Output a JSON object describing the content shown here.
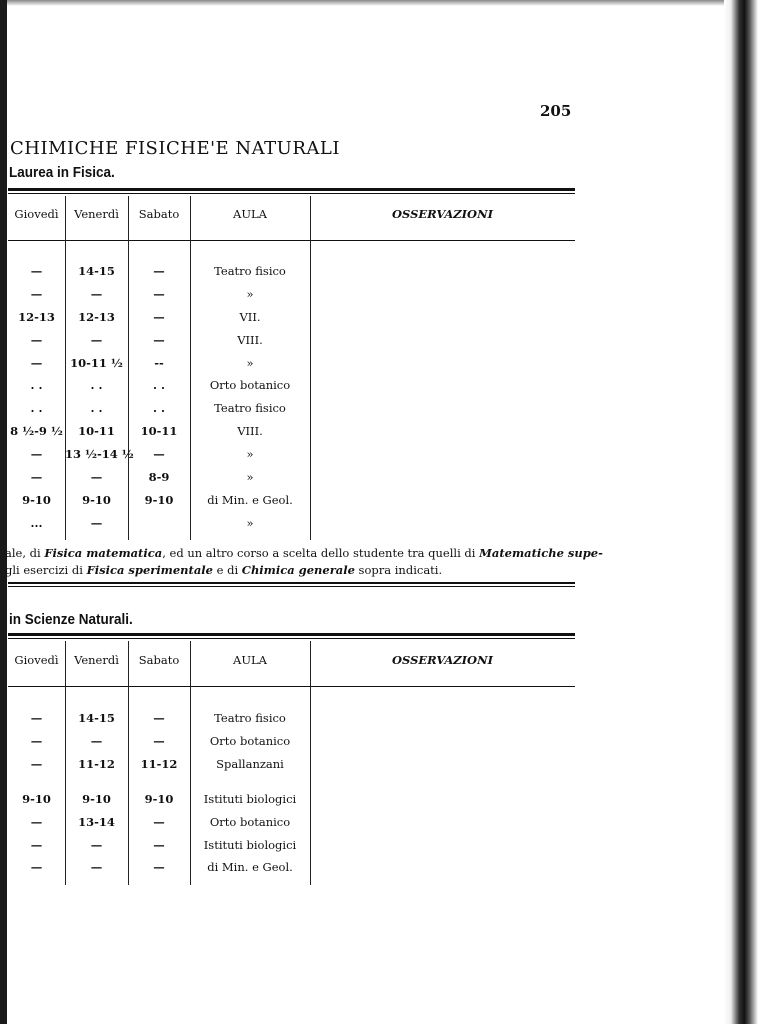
{
  "page_number": "205",
  "heading": "CHIMICHE FISICHE'E NATURALI",
  "section1": {
    "title": "Laurea in Fisica.",
    "headers": [
      "Giovedì",
      "Venerdì",
      "Sabato",
      "AULA",
      "OSSERVAZIONI"
    ],
    "rows": [
      [
        "—",
        "14-15",
        "—",
        "Teatro fisico"
      ],
      [
        "—",
        "—",
        "—",
        "»"
      ],
      [
        "12-13",
        "12-13",
        "—",
        "VII."
      ],
      [
        "—",
        "—",
        "—",
        "VIII."
      ],
      [
        "—",
        "10-11 ½",
        "--",
        "»"
      ],
      [
        ". .",
        ". .",
        ". .",
        "Orto botanico"
      ],
      [
        ". .",
        ". .",
        ". .",
        "Teatro fisico"
      ],
      [
        "8 ½-9 ½",
        "10-11",
        "10-11",
        "VIII."
      ],
      [
        "—",
        "13 ½-14 ½",
        "—",
        "»"
      ],
      [
        "—",
        "—",
        "8-9",
        "»"
      ],
      [
        "9-10",
        "9-10",
        "9-10",
        "di Min. e Geol."
      ],
      [
        "...",
        "—",
        "",
        "»"
      ]
    ],
    "notes": [
      [
        "ale, di ",
        "Fisica matematica",
        ", ed un altro corso a scelta dello studente tra quelli di ",
        "Matematiche supe-"
      ],
      [
        "gli esercizi di ",
        "Fisica sperimentale",
        " e di ",
        "Chimica generale",
        " sopra indicati."
      ]
    ]
  },
  "section2": {
    "title": "in Scienze Naturali.",
    "headers": [
      "Giovedì",
      "Venerdì",
      "Sabato",
      "AULA",
      "OSSERVAZIONI"
    ],
    "rows": [
      [
        "—",
        "14-15",
        "—",
        "Teatro fisico"
      ],
      [
        "—",
        "—",
        "—",
        "Orto botanico"
      ],
      [
        "—",
        "11-12",
        "11-12",
        "Spallanzani"
      ],
      [
        "9-10",
        "9-10",
        "9-10",
        "Istituti biologici"
      ],
      [
        "—",
        "13-14",
        "—",
        "Orto botanico"
      ],
      [
        "—",
        "—",
        "—",
        "Istituti biologici"
      ],
      [
        "—",
        "—",
        "—",
        "di Min. e Geol."
      ]
    ]
  }
}
